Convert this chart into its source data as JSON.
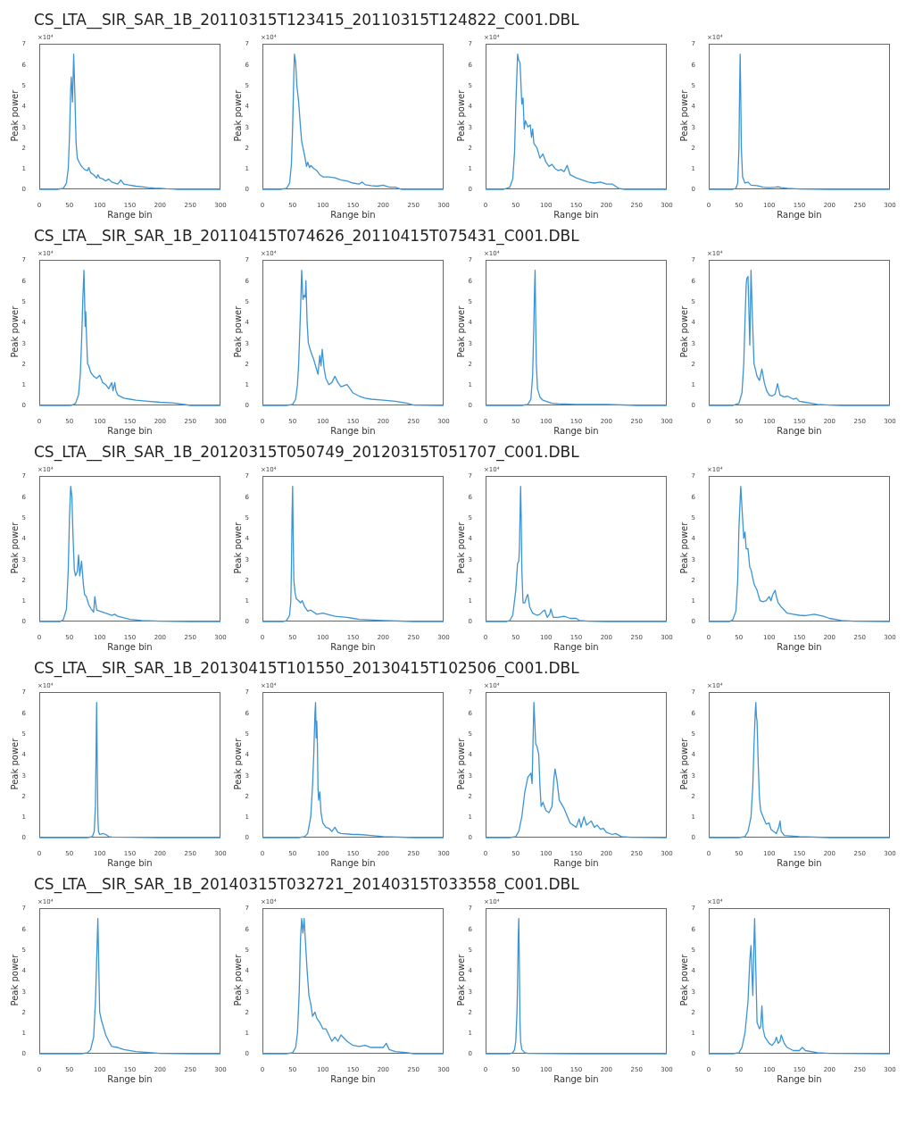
{
  "chart_data": [
    {
      "type": "line",
      "title": "CS_LTA__SIR_SAR_1B_20110315T123415_20110315T124822_C001.DBL",
      "xlabel": "Range bin",
      "ylabel": "Peak power",
      "annotations": [
        "×10⁴"
      ],
      "color": "#3d94d4",
      "xlim": [
        0,
        300
      ],
      "xticks": [
        0,
        50,
        100,
        150,
        200,
        250,
        300
      ],
      "ylim": [
        0,
        7
      ],
      "yticks": [
        0,
        1,
        2,
        3,
        4,
        5,
        6,
        7
      ],
      "x": [
        0,
        30,
        40,
        45,
        48,
        50,
        52,
        53,
        55,
        57,
        59,
        61,
        63,
        66,
        70,
        75,
        80,
        82,
        85,
        90,
        95,
        97,
        100,
        105,
        110,
        115,
        120,
        130,
        135,
        140,
        150,
        160,
        170,
        180,
        190,
        200,
        210,
        220,
        230,
        250,
        300
      ],
      "values": [
        0,
        0,
        0.05,
        0.3,
        1,
        2.5,
        4.8,
        5.4,
        4.2,
        6.5,
        4.5,
        2.2,
        1.5,
        1.3,
        1.1,
        0.95,
        0.9,
        1.05,
        0.8,
        0.7,
        0.55,
        0.7,
        0.55,
        0.5,
        0.4,
        0.5,
        0.35,
        0.25,
        0.45,
        0.25,
        0.2,
        0.15,
        0.12,
        0.08,
        0.06,
        0.05,
        0.03,
        0.02,
        0,
        0,
        0
      ]
    },
    {
      "type": "line",
      "xlabel": "Range bin",
      "ylabel": "Peak power",
      "annotations": [
        "×10⁴"
      ],
      "color": "#3d94d4",
      "xlim": [
        0,
        300
      ],
      "xticks": [
        0,
        50,
        100,
        150,
        200,
        250,
        300
      ],
      "ylim": [
        0,
        7
      ],
      "yticks": [
        0,
        1,
        2,
        3,
        4,
        5,
        6,
        7
      ],
      "x": [
        0,
        30,
        40,
        45,
        48,
        50,
        52,
        53,
        55,
        57,
        60,
        63,
        65,
        70,
        73,
        75,
        78,
        80,
        85,
        90,
        95,
        100,
        110,
        120,
        130,
        140,
        150,
        160,
        165,
        170,
        180,
        190,
        200,
        210,
        220,
        230,
        250,
        300
      ],
      "values": [
        0,
        0,
        0.05,
        0.3,
        1.2,
        3,
        5.5,
        6.5,
        6.1,
        5,
        4.2,
        3,
        2.3,
        1.6,
        1.1,
        1.3,
        1.05,
        1.15,
        1,
        0.9,
        0.7,
        0.6,
        0.6,
        0.55,
        0.45,
        0.4,
        0.3,
        0.25,
        0.35,
        0.22,
        0.18,
        0.15,
        0.2,
        0.1,
        0.1,
        0,
        0,
        0
      ]
    },
    {
      "type": "line",
      "xlabel": "Range bin",
      "ylabel": "Peak power",
      "annotations": [
        "×10⁴"
      ],
      "color": "#3d94d4",
      "xlim": [
        0,
        300
      ],
      "xticks": [
        0,
        50,
        100,
        150,
        200,
        250,
        300
      ],
      "ylim": [
        0,
        7
      ],
      "yticks": [
        0,
        1,
        2,
        3,
        4,
        5,
        6,
        7
      ],
      "x": [
        0,
        30,
        40,
        45,
        48,
        50,
        53,
        55,
        57,
        60,
        62,
        64,
        66,
        70,
        74,
        76,
        78,
        80,
        85,
        90,
        95,
        100,
        105,
        110,
        115,
        120,
        125,
        130,
        135,
        140,
        150,
        160,
        170,
        180,
        190,
        200,
        210,
        220,
        230,
        250,
        300
      ],
      "values": [
        0,
        0,
        0.1,
        0.5,
        1.8,
        4,
        6.5,
        6.2,
        6.1,
        4.1,
        4.4,
        2.9,
        3.3,
        3,
        3.1,
        2.5,
        2.9,
        2.2,
        2,
        1.5,
        1.7,
        1.3,
        1.1,
        1.2,
        1,
        0.9,
        0.95,
        0.85,
        1.15,
        0.7,
        0.55,
        0.45,
        0.35,
        0.3,
        0.35,
        0.25,
        0.25,
        0.05,
        0,
        0,
        0
      ]
    },
    {
      "type": "line",
      "xlabel": "Range bin",
      "ylabel": "Peak power",
      "annotations": [
        "×10⁴"
      ],
      "color": "#3d94d4",
      "xlim": [
        0,
        300
      ],
      "xticks": [
        0,
        50,
        100,
        150,
        200,
        250,
        300
      ],
      "ylim": [
        0,
        7
      ],
      "yticks": [
        0,
        1,
        2,
        3,
        4,
        5,
        6,
        7
      ],
      "x": [
        0,
        40,
        45,
        48,
        50,
        51,
        52,
        53,
        54,
        56,
        60,
        65,
        70,
        80,
        90,
        100,
        110,
        115,
        120,
        130,
        150,
        200,
        300
      ],
      "values": [
        0,
        0,
        0.05,
        0.3,
        2,
        4.5,
        6.5,
        4.5,
        2,
        0.6,
        0.3,
        0.35,
        0.2,
        0.18,
        0.1,
        0.08,
        0.1,
        0.12,
        0.08,
        0.05,
        0.02,
        0,
        0
      ]
    },
    {
      "type": "line",
      "title": "CS_LTA__SIR_SAR_1B_20110415T074626_20110415T075431_C001.DBL",
      "xlabel": "Range bin",
      "ylabel": "Peak power",
      "annotations": [
        "×10⁴"
      ],
      "color": "#3d94d4",
      "xlim": [
        0,
        300
      ],
      "xticks": [
        0,
        50,
        100,
        150,
        200,
        250,
        300
      ],
      "ylim": [
        0,
        7
      ],
      "yticks": [
        0,
        1,
        2,
        3,
        4,
        5,
        6,
        7
      ],
      "x": [
        0,
        50,
        55,
        60,
        65,
        68,
        70,
        72,
        74,
        75,
        76,
        77,
        78,
        80,
        82,
        85,
        90,
        95,
        100,
        105,
        110,
        115,
        120,
        122,
        125,
        127,
        130,
        140,
        150,
        160,
        180,
        200,
        220,
        240,
        250,
        300
      ],
      "values": [
        0,
        0,
        0.02,
        0.1,
        0.5,
        1.5,
        3,
        5,
        6.5,
        5.2,
        3.8,
        4.5,
        3.5,
        2,
        1.9,
        1.6,
        1.4,
        1.3,
        1.45,
        1.1,
        1,
        0.8,
        1.1,
        0.7,
        1.1,
        0.7,
        0.5,
        0.35,
        0.3,
        0.25,
        0.2,
        0.15,
        0.12,
        0.05,
        0,
        0
      ]
    },
    {
      "type": "line",
      "xlabel": "Range bin",
      "ylabel": "Peak power",
      "annotations": [
        "×10⁴"
      ],
      "color": "#3d94d4",
      "xlim": [
        0,
        300
      ],
      "xticks": [
        0,
        50,
        100,
        150,
        200,
        250,
        300
      ],
      "ylim": [
        0,
        7
      ],
      "yticks": [
        0,
        1,
        2,
        3,
        4,
        5,
        6,
        7
      ],
      "x": [
        0,
        40,
        50,
        55,
        58,
        60,
        63,
        65,
        67,
        69,
        71,
        72,
        74,
        76,
        80,
        85,
        88,
        92,
        95,
        97,
        99,
        102,
        105,
        110,
        115,
        120,
        125,
        130,
        140,
        150,
        160,
        170,
        180,
        200,
        220,
        240,
        250,
        300
      ],
      "values": [
        0,
        0,
        0.05,
        0.3,
        1,
        2,
        4.5,
        6.5,
        5.1,
        5.3,
        5.2,
        6,
        4,
        3,
        2.6,
        2.2,
        1.9,
        1.5,
        2.4,
        1.9,
        2.7,
        1.8,
        1.3,
        1,
        1.1,
        1.4,
        1.1,
        0.9,
        1,
        0.6,
        0.45,
        0.35,
        0.3,
        0.25,
        0.2,
        0.1,
        0.02,
        0
      ]
    },
    {
      "type": "line",
      "xlabel": "Range bin",
      "ylabel": "Peak power",
      "annotations": [
        "×10⁴"
      ],
      "color": "#3d94d4",
      "xlim": [
        0,
        300
      ],
      "xticks": [
        0,
        50,
        100,
        150,
        200,
        250,
        300
      ],
      "ylim": [
        0,
        7
      ],
      "yticks": [
        0,
        1,
        2,
        3,
        4,
        5,
        6,
        7
      ],
      "x": [
        0,
        60,
        70,
        75,
        78,
        80,
        81,
        82,
        83,
        84,
        86,
        90,
        95,
        100,
        110,
        120,
        150,
        200,
        250,
        300
      ],
      "values": [
        0,
        0,
        0.05,
        0.3,
        1.5,
        4,
        5.5,
        6.5,
        4,
        2,
        0.8,
        0.4,
        0.25,
        0.2,
        0.1,
        0.08,
        0.05,
        0.05,
        0,
        0
      ]
    },
    {
      "type": "line",
      "xlabel": "Range bin",
      "ylabel": "Peak power",
      "annotations": [
        "×10⁴"
      ],
      "color": "#3d94d4",
      "xlim": [
        0,
        300
      ],
      "xticks": [
        0,
        50,
        100,
        150,
        200,
        250,
        300
      ],
      "ylim": [
        0,
        7
      ],
      "yticks": [
        0,
        1,
        2,
        3,
        4,
        5,
        6,
        7
      ],
      "x": [
        0,
        40,
        50,
        55,
        58,
        60,
        62,
        63,
        65,
        67,
        68,
        70,
        72,
        75,
        80,
        84,
        88,
        92,
        96,
        100,
        105,
        110,
        114,
        118,
        125,
        130,
        140,
        145,
        150,
        160,
        170,
        180,
        200,
        220,
        250,
        300
      ],
      "values": [
        0,
        0,
        0.1,
        0.6,
        2,
        4,
        5.8,
        6.1,
        6.2,
        4,
        2.9,
        6.5,
        4.5,
        2,
        1.4,
        1.2,
        1.75,
        1.1,
        0.7,
        0.5,
        0.45,
        0.55,
        1.05,
        0.5,
        0.4,
        0.45,
        0.3,
        0.35,
        0.2,
        0.15,
        0.1,
        0.05,
        0.02,
        0,
        0,
        0
      ]
    },
    {
      "type": "line",
      "title": "CS_LTA__SIR_SAR_1B_20120315T050749_20120315T051707_C001.DBL",
      "xlabel": "Range bin",
      "ylabel": "Peak power",
      "annotations": [
        "×10⁴"
      ],
      "color": "#3d94d4",
      "xlim": [
        0,
        300
      ],
      "xticks": [
        0,
        50,
        100,
        150,
        200,
        250,
        300
      ],
      "ylim": [
        0,
        7
      ],
      "yticks": [
        0,
        1,
        2,
        3,
        4,
        5,
        6,
        7
      ],
      "x": [
        0,
        35,
        40,
        45,
        48,
        50,
        52,
        54,
        56,
        58,
        60,
        63,
        65,
        67,
        70,
        73,
        75,
        78,
        82,
        86,
        90,
        92,
        95,
        100,
        110,
        120,
        125,
        130,
        150,
        170,
        200,
        250,
        300
      ],
      "values": [
        0,
        0,
        0.1,
        0.6,
        2.5,
        5,
        6.5,
        6,
        4,
        2.5,
        2.2,
        2.4,
        3.2,
        2.2,
        2.9,
        1.8,
        1.3,
        1.2,
        0.8,
        0.6,
        0.45,
        1.2,
        0.55,
        0.5,
        0.4,
        0.3,
        0.35,
        0.25,
        0.1,
        0.05,
        0.02,
        0,
        0
      ]
    },
    {
      "type": "line",
      "xlabel": "Range bin",
      "ylabel": "Peak power",
      "annotations": [
        "×10⁴"
      ],
      "color": "#3d94d4",
      "xlim": [
        0,
        300
      ],
      "xticks": [
        0,
        50,
        100,
        150,
        200,
        250,
        300
      ],
      "ylim": [
        0,
        7
      ],
      "yticks": [
        0,
        1,
        2,
        3,
        4,
        5,
        6,
        7
      ],
      "x": [
        0,
        35,
        40,
        45,
        47,
        48,
        49,
        50,
        51,
        52,
        54,
        56,
        60,
        63,
        66,
        70,
        75,
        80,
        90,
        100,
        120,
        140,
        150,
        160,
        200,
        250,
        300
      ],
      "values": [
        0,
        0,
        0.05,
        0.3,
        1,
        2.5,
        5,
        6.5,
        4,
        2,
        1.4,
        1.1,
        1,
        0.9,
        1,
        0.7,
        0.5,
        0.55,
        0.35,
        0.4,
        0.25,
        0.2,
        0.15,
        0.1,
        0.05,
        0,
        0
      ]
    },
    {
      "type": "line",
      "xlabel": "Range bin",
      "ylabel": "Peak power",
      "annotations": [
        "×10⁴"
      ],
      "color": "#3d94d4",
      "xlim": [
        0,
        300
      ],
      "xticks": [
        0,
        50,
        100,
        150,
        200,
        250,
        300
      ],
      "ylim": [
        0,
        7
      ],
      "yticks": [
        0,
        1,
        2,
        3,
        4,
        5,
        6,
        7
      ],
      "x": [
        0,
        35,
        40,
        45,
        50,
        53,
        55,
        56,
        57,
        58,
        59,
        60,
        62,
        65,
        68,
        70,
        73,
        78,
        85,
        90,
        95,
        98,
        102,
        106,
        108,
        112,
        120,
        130,
        140,
        150,
        155,
        170,
        200,
        250,
        300
      ],
      "values": [
        0,
        0,
        0.05,
        0.3,
        1.5,
        2.8,
        2.9,
        3.5,
        5,
        6.5,
        5,
        2.5,
        0.9,
        0.9,
        1.2,
        1.3,
        0.7,
        0.4,
        0.3,
        0.35,
        0.5,
        0.55,
        0.2,
        0.35,
        0.6,
        0.2,
        0.2,
        0.25,
        0.15,
        0.15,
        0.05,
        0.02,
        0,
        0,
        0
      ]
    },
    {
      "type": "line",
      "xlabel": "Range bin",
      "ylabel": "Peak power",
      "annotations": [
        "×10⁴"
      ],
      "color": "#3d94d4",
      "xlim": [
        0,
        300
      ],
      "xticks": [
        0,
        50,
        100,
        150,
        200,
        250,
        300
      ],
      "ylim": [
        0,
        7
      ],
      "yticks": [
        0,
        1,
        2,
        3,
        4,
        5,
        6,
        7
      ],
      "x": [
        0,
        35,
        40,
        45,
        48,
        50,
        53,
        55,
        58,
        60,
        62,
        65,
        68,
        70,
        75,
        80,
        85,
        90,
        95,
        100,
        103,
        106,
        110,
        112,
        115,
        120,
        130,
        140,
        150,
        160,
        175,
        190,
        200,
        220,
        240,
        300
      ],
      "values": [
        0,
        0,
        0.1,
        0.5,
        2,
        4.5,
        6.5,
        5.5,
        4,
        4.3,
        3.5,
        3.5,
        2.6,
        2.5,
        1.8,
        1.5,
        1,
        0.95,
        1,
        1.2,
        1,
        1.3,
        1.5,
        1.2,
        0.9,
        0.7,
        0.4,
        0.35,
        0.3,
        0.28,
        0.35,
        0.25,
        0.15,
        0.05,
        0.02,
        0
      ]
    },
    {
      "type": "line",
      "title": "CS_LTA__SIR_SAR_1B_20130415T101550_20130415T102506_C001.DBL",
      "xlabel": "Range bin",
      "ylabel": "Peak power",
      "annotations": [
        "×10⁴"
      ],
      "color": "#3d94d4",
      "xlim": [
        0,
        300
      ],
      "xticks": [
        0,
        50,
        100,
        150,
        200,
        250,
        300
      ],
      "ylim": [
        0,
        7
      ],
      "yticks": [
        0,
        1,
        2,
        3,
        4,
        5,
        6,
        7
      ],
      "x": [
        0,
        80,
        88,
        91,
        93,
        94,
        95,
        96,
        97,
        98,
        100,
        105,
        110,
        115,
        120,
        150,
        200,
        250,
        300
      ],
      "values": [
        0,
        0,
        0.05,
        0.3,
        1.5,
        4,
        6.5,
        3.5,
        1,
        0.3,
        0.15,
        0.2,
        0.15,
        0.05,
        0.03,
        0.02,
        0,
        0,
        0
      ]
    },
    {
      "type": "line",
      "xlabel": "Range bin",
      "ylabel": "Peak power",
      "annotations": [
        "×10⁴"
      ],
      "color": "#3d94d4",
      "xlim": [
        0,
        300
      ],
      "xticks": [
        0,
        50,
        100,
        150,
        200,
        250,
        300
      ],
      "ylim": [
        0,
        7
      ],
      "yticks": [
        0,
        1,
        2,
        3,
        4,
        5,
        6,
        7
      ],
      "x": [
        0,
        60,
        70,
        75,
        80,
        83,
        85,
        87,
        88,
        89,
        90,
        91,
        92,
        93,
        95,
        97,
        100,
        105,
        110,
        115,
        120,
        125,
        130,
        150,
        160,
        180,
        200,
        250,
        300
      ],
      "values": [
        0,
        0,
        0.05,
        0.2,
        1,
        2.5,
        4,
        6,
        6.5,
        4.8,
        5.6,
        4.5,
        2.4,
        1.8,
        2.2,
        1.2,
        0.7,
        0.5,
        0.45,
        0.3,
        0.5,
        0.25,
        0.2,
        0.15,
        0.15,
        0.1,
        0.05,
        0,
        0
      ]
    },
    {
      "type": "line",
      "xlabel": "Range bin",
      "ylabel": "Peak power",
      "annotations": [
        "×10⁴"
      ],
      "color": "#3d94d4",
      "xlim": [
        0,
        300
      ],
      "xticks": [
        0,
        50,
        100,
        150,
        200,
        250,
        300
      ],
      "ylim": [
        0,
        7
      ],
      "yticks": [
        0,
        1,
        2,
        3,
        4,
        5,
        6,
        7
      ],
      "x": [
        0,
        40,
        50,
        55,
        60,
        65,
        70,
        75,
        77,
        80,
        83,
        85,
        88,
        90,
        92,
        95,
        100,
        105,
        110,
        113,
        115,
        118,
        122,
        130,
        140,
        150,
        155,
        158,
        163,
        167,
        175,
        180,
        185,
        190,
        195,
        200,
        210,
        215,
        225,
        240,
        300
      ],
      "values": [
        0,
        0,
        0.05,
        0.3,
        1,
        2.2,
        2.9,
        3.1,
        2.6,
        6.5,
        4.5,
        4.4,
        4,
        2.5,
        1.5,
        1.7,
        1.3,
        1.2,
        1.5,
        2.8,
        3.3,
        2.8,
        1.8,
        1.4,
        0.7,
        0.5,
        0.9,
        0.5,
        1,
        0.6,
        0.8,
        0.5,
        0.6,
        0.4,
        0.45,
        0.25,
        0.15,
        0.2,
        0.05,
        0.02,
        0
      ]
    },
    {
      "type": "line",
      "xlabel": "Range bin",
      "ylabel": "Peak power",
      "annotations": [
        "×10⁴"
      ],
      "color": "#3d94d4",
      "xlim": [
        0,
        300
      ],
      "xticks": [
        0,
        50,
        100,
        150,
        200,
        250,
        300
      ],
      "ylim": [
        0,
        7
      ],
      "yticks": [
        0,
        1,
        2,
        3,
        4,
        5,
        6,
        7
      ],
      "x": [
        0,
        50,
        60,
        65,
        70,
        73,
        75,
        77,
        78,
        79,
        80,
        82,
        84,
        86,
        90,
        95,
        100,
        103,
        107,
        112,
        116,
        118,
        120,
        125,
        150,
        200,
        300
      ],
      "values": [
        0,
        0,
        0.05,
        0.3,
        1,
        2.5,
        4.5,
        6,
        6.5,
        5.8,
        5.6,
        3.5,
        1.9,
        1.3,
        1,
        0.65,
        0.7,
        0.4,
        0.3,
        0.2,
        0.5,
        0.8,
        0.3,
        0.1,
        0.05,
        0,
        0
      ]
    },
    {
      "type": "line",
      "title": "CS_LTA__SIR_SAR_1B_20140315T032721_20140315T033558_C001.DBL",
      "xlabel": "Range bin",
      "ylabel": "Peak power",
      "annotations": [
        "×10⁴"
      ],
      "color": "#3d94d4",
      "xlim": [
        0,
        300
      ],
      "xticks": [
        0,
        50,
        100,
        150,
        200,
        250,
        300
      ],
      "ylim": [
        0,
        7
      ],
      "yticks": [
        0,
        1,
        2,
        3,
        4,
        5,
        6,
        7
      ],
      "x": [
        0,
        70,
        80,
        85,
        90,
        93,
        95,
        97,
        99,
        100,
        103,
        106,
        110,
        115,
        120,
        130,
        140,
        160,
        200,
        250,
        300
      ],
      "values": [
        0,
        0,
        0.05,
        0.2,
        0.8,
        2.5,
        4.5,
        6.5,
        3.5,
        2,
        1.6,
        1.3,
        0.9,
        0.6,
        0.35,
        0.3,
        0.2,
        0.1,
        0.02,
        0,
        0
      ]
    },
    {
      "type": "line",
      "xlabel": "Range bin",
      "ylabel": "Peak power",
      "annotations": [
        "×10⁴"
      ],
      "color": "#3d94d4",
      "xlim": [
        0,
        300
      ],
      "xticks": [
        0,
        50,
        100,
        150,
        200,
        250,
        300
      ],
      "ylim": [
        0,
        7
      ],
      "yticks": [
        0,
        1,
        2,
        3,
        4,
        5,
        6,
        7
      ],
      "x": [
        0,
        40,
        50,
        55,
        58,
        61,
        63,
        65,
        67,
        69,
        71,
        74,
        77,
        80,
        83,
        87,
        90,
        95,
        100,
        105,
        110,
        115,
        120,
        125,
        130,
        140,
        150,
        160,
        170,
        180,
        190,
        200,
        205,
        210,
        220,
        240,
        250,
        300
      ],
      "values": [
        0,
        0,
        0.05,
        0.3,
        1,
        3,
        5.5,
        6.5,
        5.8,
        6.5,
        5.5,
        4,
        2.8,
        2.4,
        1.8,
        2,
        1.7,
        1.5,
        1.2,
        1.2,
        0.9,
        0.6,
        0.8,
        0.6,
        0.9,
        0.6,
        0.4,
        0.35,
        0.4,
        0.3,
        0.3,
        0.3,
        0.5,
        0.2,
        0.1,
        0.05,
        0,
        0
      ]
    },
    {
      "type": "line",
      "xlabel": "Range bin",
      "ylabel": "Peak power",
      "annotations": [
        "×10⁴"
      ],
      "color": "#3d94d4",
      "xlim": [
        0,
        300
      ],
      "xticks": [
        0,
        50,
        100,
        150,
        200,
        250,
        300
      ],
      "ylim": [
        0,
        7
      ],
      "yticks": [
        0,
        1,
        2,
        3,
        4,
        5,
        6,
        7
      ],
      "x": [
        0,
        40,
        45,
        48,
        50,
        52,
        53,
        54,
        55,
        56,
        57,
        58,
        60,
        65,
        70,
        100,
        150,
        200,
        300
      ],
      "values": [
        0,
        0,
        0.05,
        0.2,
        0.6,
        2,
        3.5,
        5.5,
        6.5,
        4,
        1.5,
        0.6,
        0.2,
        0.05,
        0.02,
        0.01,
        0,
        0,
        0
      ]
    },
    {
      "type": "line",
      "xlabel": "Range bin",
      "ylabel": "Peak power",
      "annotations": [
        "×10⁴"
      ],
      "color": "#3d94d4",
      "xlim": [
        0,
        300
      ],
      "xticks": [
        0,
        50,
        100,
        150,
        200,
        250,
        300
      ],
      "ylim": [
        0,
        7
      ],
      "yticks": [
        0,
        1,
        2,
        3,
        4,
        5,
        6,
        7
      ],
      "x": [
        0,
        40,
        50,
        55,
        60,
        65,
        68,
        70,
        72,
        73,
        75,
        76,
        78,
        80,
        84,
        86,
        88,
        90,
        93,
        100,
        105,
        110,
        112,
        115,
        118,
        120,
        125,
        130,
        140,
        150,
        155,
        160,
        180,
        200,
        300
      ],
      "values": [
        0,
        0,
        0.05,
        0.3,
        1,
        2.5,
        4.5,
        5.2,
        3.5,
        2.8,
        5.5,
        6.5,
        4,
        1.5,
        1.2,
        1.3,
        2.3,
        1.2,
        0.8,
        0.5,
        0.4,
        0.6,
        0.8,
        0.5,
        0.6,
        0.9,
        0.5,
        0.3,
        0.15,
        0.15,
        0.3,
        0.15,
        0.05,
        0.02,
        0
      ]
    }
  ]
}
